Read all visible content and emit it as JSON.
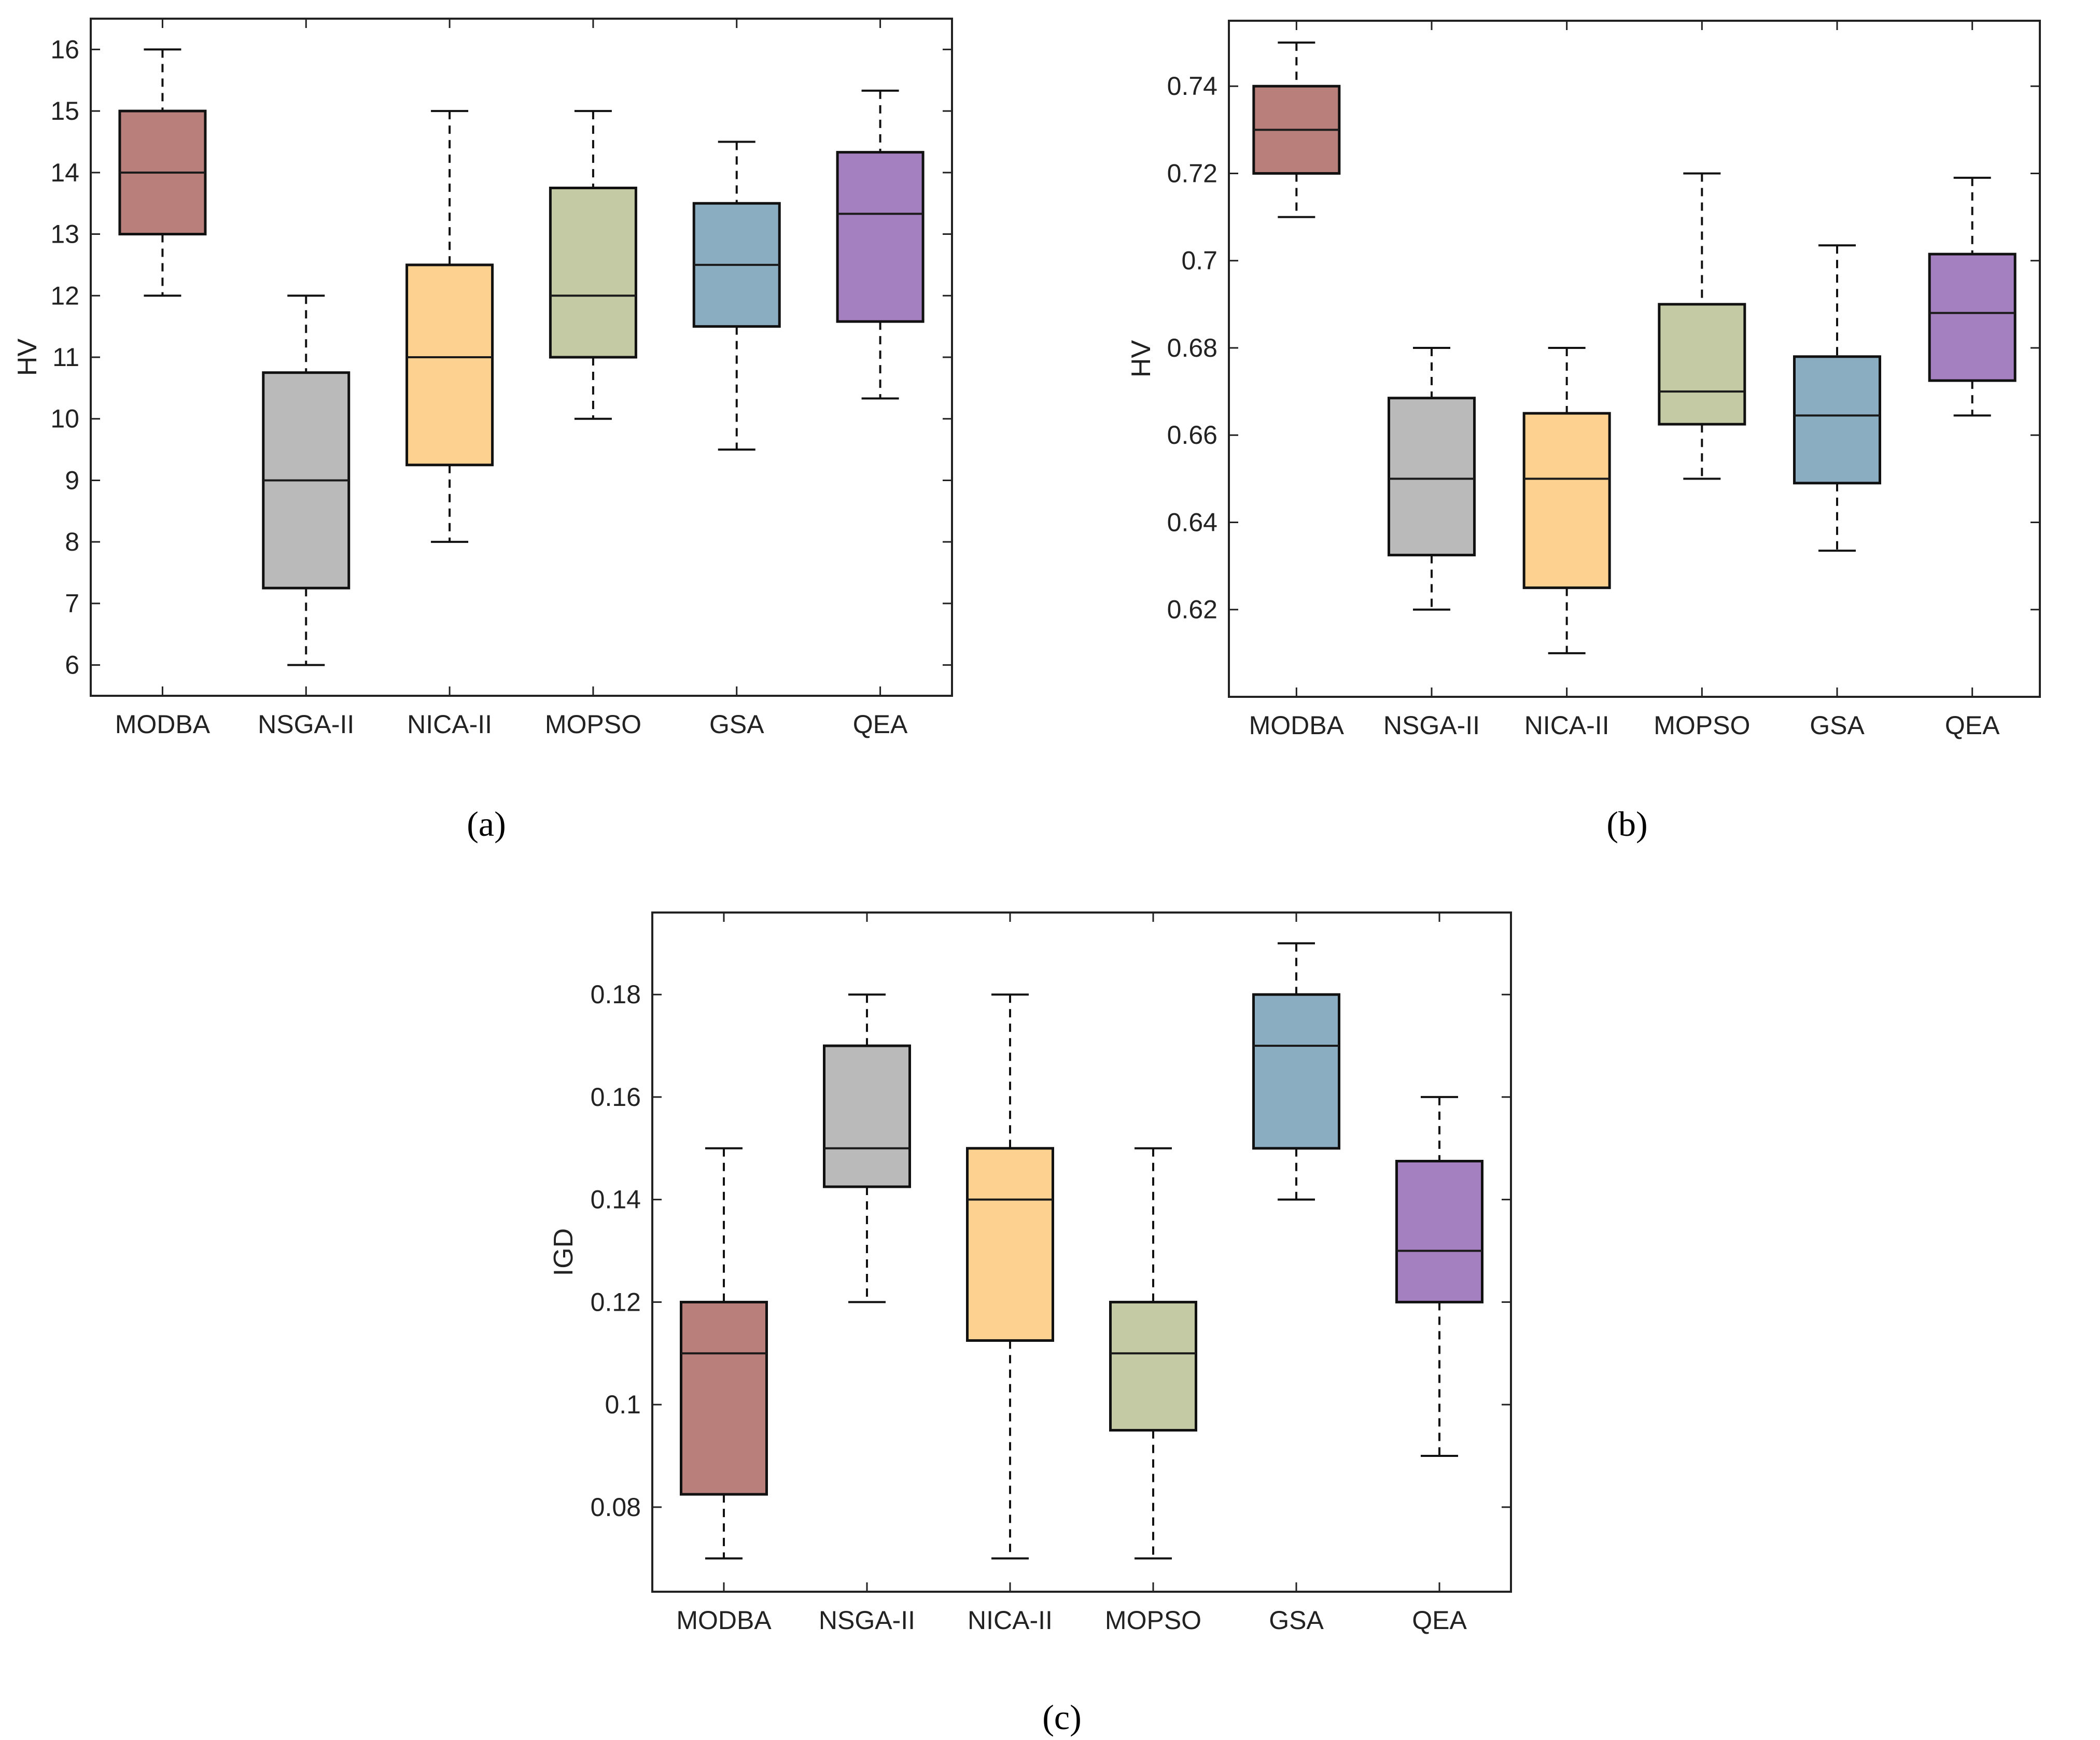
{
  "chart_data": [
    {
      "type": "boxplot",
      "panel_label": "(a)",
      "ylabel": "HV",
      "xlabel": "",
      "categories": [
        "MODBA",
        "NSGA-II",
        "NICA-II",
        "MOPSO",
        "GSA",
        "QEA"
      ],
      "ylim": [
        5.5,
        16.5
      ],
      "yticks": [
        6,
        7,
        8,
        9,
        10,
        11,
        12,
        13,
        14,
        15,
        16
      ],
      "ytick_labels": [
        "6",
        "7",
        "8",
        "9",
        "10",
        "11",
        "12",
        "13",
        "14",
        "15",
        "16"
      ],
      "boxes": [
        {
          "name": "MODBA",
          "min": 12,
          "q1": 13,
          "median": 14,
          "q3": 15,
          "max": 16
        },
        {
          "name": "NSGA-II",
          "min": 6,
          "q1": 7.25,
          "median": 9,
          "q3": 10.75,
          "max": 12
        },
        {
          "name": "NICA-II",
          "min": 8,
          "q1": 9.25,
          "median": 11,
          "q3": 12.5,
          "max": 15
        },
        {
          "name": "MOPSO",
          "min": 10,
          "q1": 11,
          "median": 12,
          "q3": 13.75,
          "max": 15
        },
        {
          "name": "GSA",
          "min": 9.5,
          "q1": 11.5,
          "median": 12.5,
          "q3": 13.5,
          "max": 14.5
        },
        {
          "name": "QEA",
          "min": 10.33,
          "q1": 11.58,
          "median": 13.33,
          "q3": 14.33,
          "max": 15.33
        }
      ]
    },
    {
      "type": "boxplot",
      "panel_label": "(b)",
      "ylabel": "HV",
      "xlabel": "",
      "categories": [
        "MODBA",
        "NSGA-II",
        "NICA-II",
        "MOPSO",
        "GSA",
        "QEA"
      ],
      "ylim": [
        0.6,
        0.755
      ],
      "yticks": [
        0.62,
        0.64,
        0.66,
        0.68,
        0.7,
        0.72,
        0.74
      ],
      "ytick_labels": [
        "0.62",
        "0.64",
        "0.66",
        "0.68",
        "0.7",
        "0.72",
        "0.74"
      ],
      "boxes": [
        {
          "name": "MODBA",
          "min": 0.71,
          "q1": 0.72,
          "median": 0.73,
          "q3": 0.74,
          "max": 0.75
        },
        {
          "name": "NSGA-II",
          "min": 0.62,
          "q1": 0.6325,
          "median": 0.65,
          "q3": 0.6685,
          "max": 0.68
        },
        {
          "name": "NICA-II",
          "min": 0.61,
          "q1": 0.625,
          "median": 0.65,
          "q3": 0.665,
          "max": 0.68
        },
        {
          "name": "MOPSO",
          "min": 0.65,
          "q1": 0.6625,
          "median": 0.67,
          "q3": 0.69,
          "max": 0.72
        },
        {
          "name": "GSA",
          "min": 0.6335,
          "q1": 0.649,
          "median": 0.6645,
          "q3": 0.678,
          "max": 0.7035
        },
        {
          "name": "QEA",
          "min": 0.6645,
          "q1": 0.6725,
          "median": 0.688,
          "q3": 0.7015,
          "max": 0.719
        }
      ]
    },
    {
      "type": "boxplot",
      "panel_label": "(c)",
      "ylabel": "IGD",
      "xlabel": "",
      "categories": [
        "MODBA",
        "NSGA-II",
        "NICA-II",
        "MOPSO",
        "GSA",
        "QEA"
      ],
      "ylim": [
        0.0635,
        0.196
      ],
      "yticks": [
        0.08,
        0.1,
        0.12,
        0.14,
        0.16,
        0.18
      ],
      "ytick_labels": [
        "0.08",
        "0.1",
        "0.12",
        "0.14",
        "0.16",
        "0.18"
      ],
      "boxes": [
        {
          "name": "MODBA",
          "min": 0.07,
          "q1": 0.0825,
          "median": 0.11,
          "q3": 0.12,
          "max": 0.15
        },
        {
          "name": "NSGA-II",
          "min": 0.12,
          "q1": 0.1425,
          "median": 0.15,
          "q3": 0.17,
          "max": 0.18
        },
        {
          "name": "NICA-II",
          "min": 0.07,
          "q1": 0.1125,
          "median": 0.14,
          "q3": 0.15,
          "max": 0.18
        },
        {
          "name": "MOPSO",
          "min": 0.07,
          "q1": 0.095,
          "median": 0.11,
          "q3": 0.12,
          "max": 0.15
        },
        {
          "name": "GSA",
          "min": 0.14,
          "q1": 0.15,
          "median": 0.17,
          "q3": 0.18,
          "max": 0.19
        },
        {
          "name": "QEA",
          "min": 0.09,
          "q1": 0.12,
          "median": 0.13,
          "q3": 0.1475,
          "max": 0.16
        }
      ]
    }
  ],
  "colors": {
    "MODBA": "#b97f7b",
    "NSGA-II": "#bbbaba",
    "NICA-II": "#fdd290",
    "MOPSO": "#c3caa4",
    "GSA": "#8aadc2",
    "QEA": "#a580c0",
    "edge": "#111111"
  }
}
